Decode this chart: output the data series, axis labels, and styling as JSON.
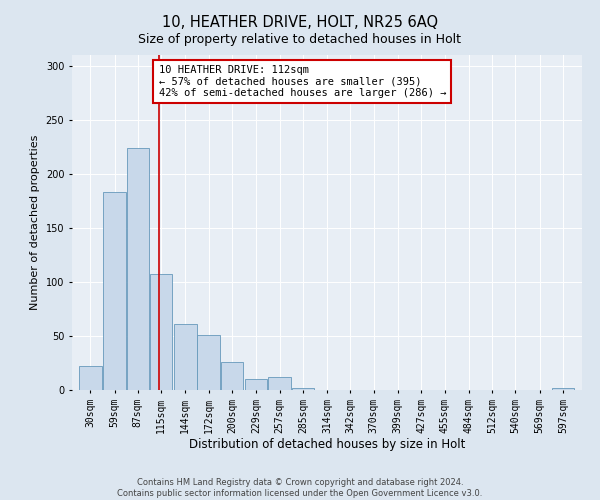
{
  "title": "10, HEATHER DRIVE, HOLT, NR25 6AQ",
  "subtitle": "Size of property relative to detached houses in Holt",
  "xlabel": "Distribution of detached houses by size in Holt",
  "ylabel": "Number of detached properties",
  "bin_labels": [
    "30sqm",
    "59sqm",
    "87sqm",
    "115sqm",
    "144sqm",
    "172sqm",
    "200sqm",
    "229sqm",
    "257sqm",
    "285sqm",
    "314sqm",
    "342sqm",
    "370sqm",
    "399sqm",
    "427sqm",
    "455sqm",
    "484sqm",
    "512sqm",
    "540sqm",
    "569sqm",
    "597sqm"
  ],
  "centers": [
    30,
    59,
    87,
    115,
    144,
    172,
    200,
    229,
    257,
    285,
    314,
    342,
    370,
    399,
    427,
    455,
    484,
    512,
    540,
    569,
    597
  ],
  "bar_values": [
    22,
    183,
    224,
    107,
    61,
    51,
    26,
    10,
    12,
    2,
    0,
    0,
    0,
    0,
    0,
    0,
    0,
    0,
    0,
    0,
    2
  ],
  "bar_color": "#c8d8ea",
  "bar_edge_color": "#6699bb",
  "vline_x": 112,
  "vline_color": "#cc0000",
  "annotation_line1": "10 HEATHER DRIVE: 112sqm",
  "annotation_line2": "← 57% of detached houses are smaller (395)",
  "annotation_line3": "42% of semi-detached houses are larger (286) →",
  "annotation_box_color": "#ffffff",
  "annotation_box_edge": "#cc0000",
  "ylim": [
    0,
    310
  ],
  "yticks": [
    0,
    50,
    100,
    150,
    200,
    250,
    300
  ],
  "xlim_left": 8,
  "xlim_right": 620,
  "bin_width": 27,
  "bg_color": "#dce6f0",
  "plot_bg_color": "#e8eef5",
  "grid_color": "#ffffff",
  "footer_line1": "Contains HM Land Registry data © Crown copyright and database right 2024.",
  "footer_line2": "Contains public sector information licensed under the Open Government Licence v3.0.",
  "title_fontsize": 10.5,
  "subtitle_fontsize": 9,
  "xlabel_fontsize": 8.5,
  "ylabel_fontsize": 8,
  "tick_fontsize": 7,
  "annotation_fontsize": 7.5,
  "footer_fontsize": 6
}
